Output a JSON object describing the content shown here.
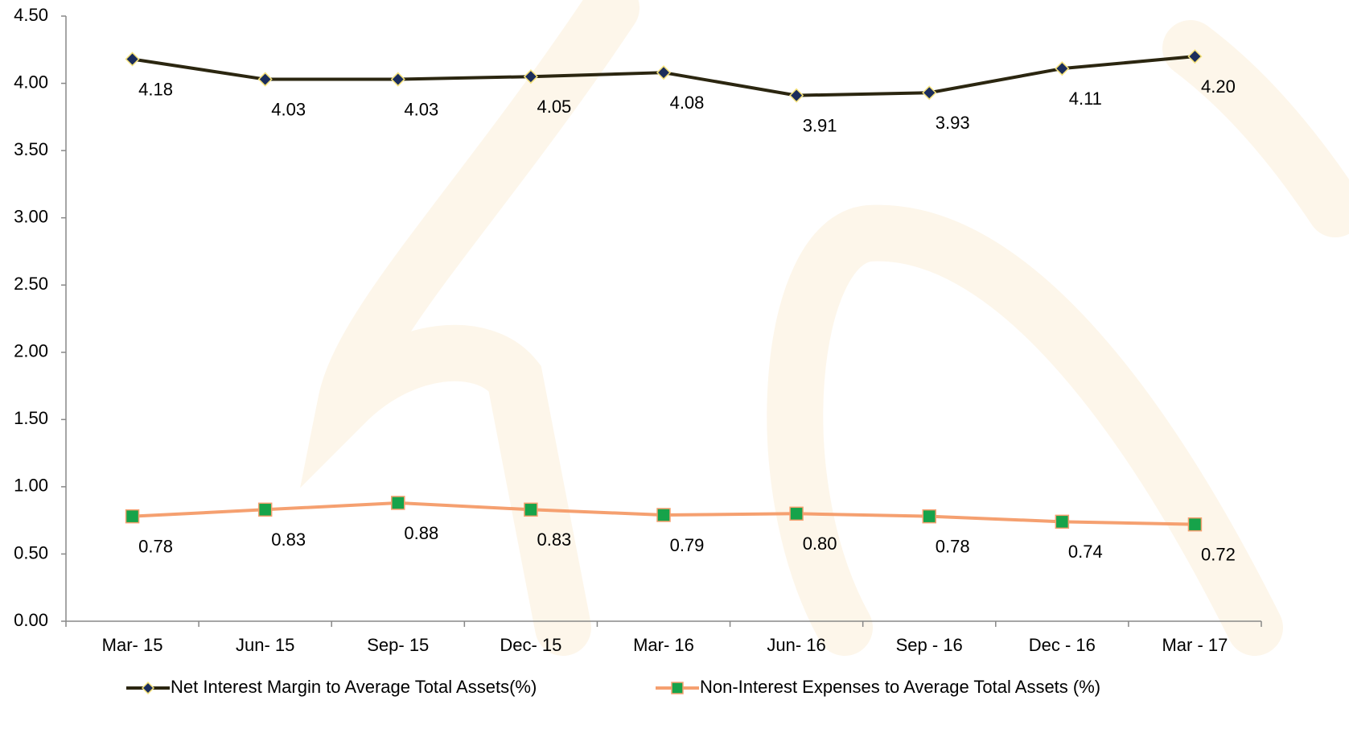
{
  "chart_data": {
    "type": "line",
    "categories": [
      "Mar- 15",
      "Jun- 15",
      "Sep- 15",
      "Dec- 15",
      "Mar- 16",
      "Jun- 16",
      "Sep - 16",
      "Dec - 16",
      "Mar - 17"
    ],
    "series": [
      {
        "name": "Net Interest Margin to Average Total Assets(%)",
        "color": "#2b2610",
        "marker": "diamond",
        "marker_color": "#1b2d5c",
        "values": [
          4.18,
          4.03,
          4.03,
          4.05,
          4.08,
          3.91,
          3.93,
          4.11,
          4.2
        ],
        "value_labels": [
          "4.18",
          "4.03",
          "4.03",
          "4.05",
          "4.08",
          "3.91",
          "3.93",
          "4.11",
          "4.20"
        ]
      },
      {
        "name": "Non-Interest Expenses to Average Total Assets (%)",
        "color": "#f5a070",
        "marker": "square",
        "marker_color": "#16a34a",
        "values": [
          0.78,
          0.83,
          0.88,
          0.83,
          0.79,
          0.8,
          0.78,
          0.74,
          0.72
        ],
        "value_labels": [
          "0.78",
          "0.83",
          "0.88",
          "0.83",
          "0.79",
          "0.80",
          "0.78",
          "0.74",
          "0.72"
        ]
      }
    ],
    "ylim": [
      0,
      4.5
    ],
    "yticks": [
      {
        "value": 0,
        "label": "0.00"
      },
      {
        "value": 0.5,
        "label": "0.50"
      },
      {
        "value": 1,
        "label": "1.00"
      },
      {
        "value": 1.5,
        "label": "1.50"
      },
      {
        "value": 2,
        "label": "2.00"
      },
      {
        "value": 2.5,
        "label": "2.50"
      },
      {
        "value": 3,
        "label": "3.00"
      },
      {
        "value": 3.5,
        "label": "3.50"
      },
      {
        "value": 4,
        "label": "4.00"
      },
      {
        "value": 4.5,
        "label": "4.50"
      }
    ],
    "grid": false,
    "legend": "bottom"
  }
}
